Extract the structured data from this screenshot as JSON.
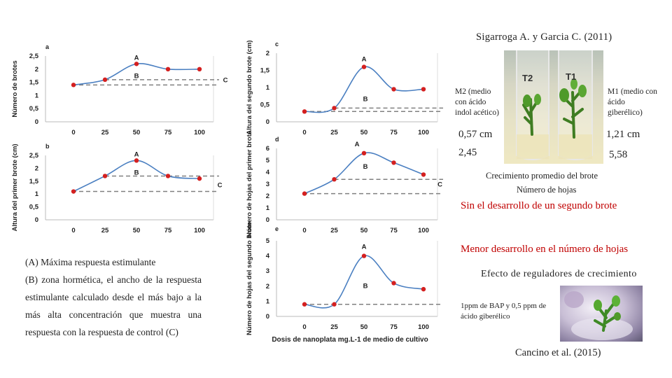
{
  "header": {
    "citation_top": "Sigarroga A. y Garcia C. (2011)",
    "citation_bottom": "Cancino et al. (2015)"
  },
  "caption": {
    "line_a": "(A) Máxima respuesta estimulante",
    "line_b": "(B) zona hormética, el ancho de la respuesta estimulante calculado desde el más bajo a la más alta concentración que muestra una respuesta con la respuesta de control (C)"
  },
  "photo1": {
    "tube_left": "T2",
    "tube_right": "T1",
    "label_m2": "M2 (medio con ácido indol acético)",
    "label_m1": "M1 (medio con ácido giberélico)",
    "val_m2_height": "0,57 cm",
    "val_m1_height": "1,21 cm",
    "val_m2_leaves": "2,45",
    "val_m1_leaves": "5,58"
  },
  "legend_text": {
    "growth": "Crecimiento promedio del brote",
    "leaves": "Número de hojas",
    "no_second": "Sin el desarrollo de un segundo brote",
    "less_leaves": "Menor desarrollo en el número de hojas",
    "regulators": "Efecto de reguladores de crecimiento"
  },
  "photo2": {
    "label": "1ppm de BAP y 0,5 ppm de ácido giberélico"
  },
  "colors": {
    "curve": "#4a7fc1",
    "point": "#d42020",
    "dashed": "#808080",
    "highlight": "#c00000"
  },
  "chart_data": [
    {
      "type": "line",
      "panel": "a",
      "ylabel": "Número de brotes",
      "xlabel": "",
      "categories": [
        "0",
        "25",
        "50",
        "75",
        "100"
      ],
      "values": [
        1.4,
        1.6,
        2.2,
        2.0,
        2.0
      ],
      "ylim": [
        0,
        2.5
      ],
      "yticks": [
        "0",
        "0,5",
        "1",
        "1,5",
        "2",
        "2,5"
      ],
      "control_level": 1.4,
      "hormesis_level": 1.6,
      "annotations": [
        "A",
        "B",
        "C"
      ]
    },
    {
      "type": "line",
      "panel": "b",
      "ylabel": "Altura del primer brote (cm)",
      "xlabel": "",
      "categories": [
        "0",
        "25",
        "50",
        "75",
        "100"
      ],
      "values": [
        1.1,
        1.7,
        2.3,
        1.7,
        1.6
      ],
      "ylim": [
        0,
        2.5
      ],
      "yticks": [
        "0",
        "0,5",
        "1",
        "1,5",
        "2",
        "2,5"
      ],
      "control_level": 1.1,
      "hormesis_level": 1.7,
      "annotations": [
        "A",
        "B",
        "C"
      ]
    },
    {
      "type": "line",
      "panel": "c",
      "ylabel": "Altura del segundo brote (cm)",
      "xlabel": "",
      "categories": [
        "0",
        "25",
        "50",
        "75",
        "100"
      ],
      "values": [
        0.3,
        0.4,
        1.6,
        0.95,
        0.95
      ],
      "ylim": [
        0,
        2
      ],
      "yticks": [
        "0",
        "0,5",
        "1",
        "1,5",
        "2"
      ],
      "control_level": 0.3,
      "hormesis_level": 0.4,
      "annotations": [
        "A",
        "B"
      ]
    },
    {
      "type": "line",
      "panel": "d",
      "ylabel": "Número de hojas del primer brote",
      "xlabel": "",
      "categories": [
        "0",
        "25",
        "50",
        "75",
        "100"
      ],
      "values": [
        2.2,
        3.4,
        5.6,
        4.8,
        3.8
      ],
      "ylim": [
        0,
        6
      ],
      "yticks": [
        "0",
        "1",
        "2",
        "3",
        "4",
        "5",
        "6"
      ],
      "control_level": 2.2,
      "hormesis_level": 3.4,
      "annotations": [
        "A",
        "B",
        "C"
      ]
    },
    {
      "type": "line",
      "panel": "e",
      "ylabel": "Número de hojas del segundo brote",
      "xlabel": "Dosis de nanoplata mg.L-1 de medio de cultivo",
      "categories": [
        "0",
        "25",
        "50",
        "75",
        "100"
      ],
      "values": [
        0.8,
        0.8,
        4.0,
        2.2,
        1.8
      ],
      "ylim": [
        0,
        5
      ],
      "yticks": [
        "0",
        "1",
        "2",
        "3",
        "4",
        "5"
      ],
      "control_level": 0.8,
      "hormesis_level": 0.8,
      "annotations": [
        "A",
        "B"
      ]
    }
  ]
}
